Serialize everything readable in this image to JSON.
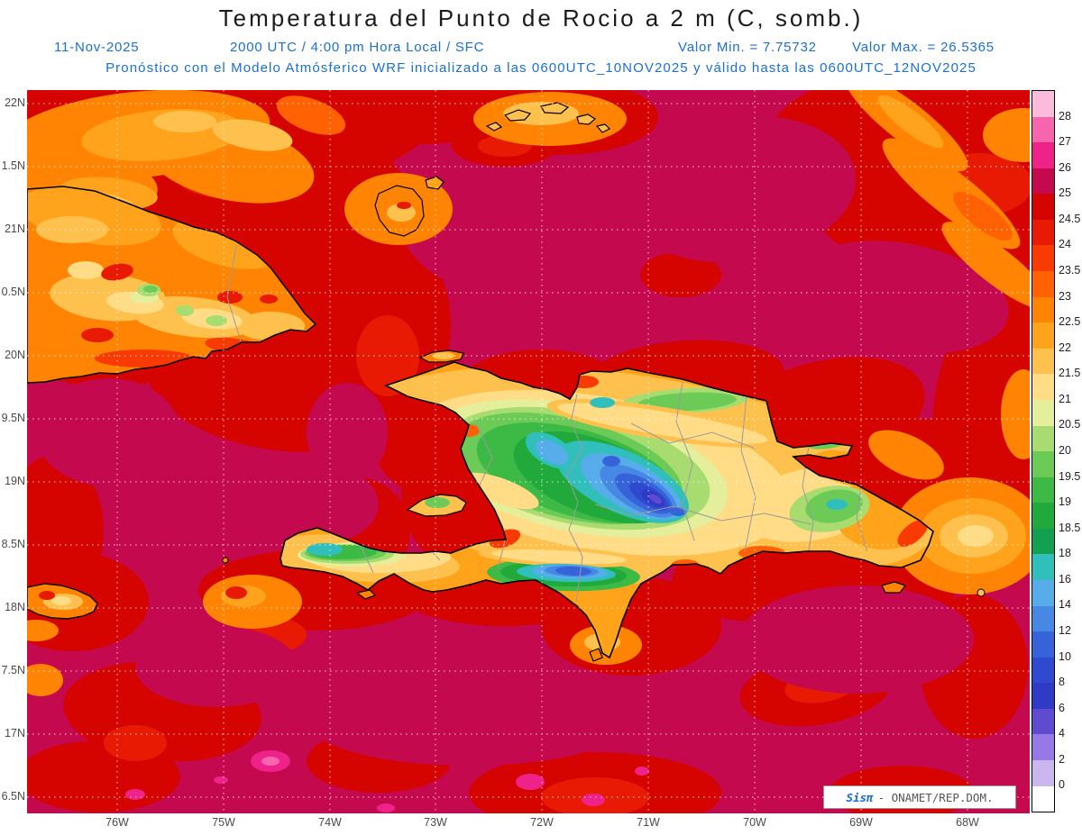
{
  "header": {
    "title": "Temperatura del Punto de Rocio a 2 m (C, somb.)",
    "date": "11-Nov-2025",
    "time": "2000 UTC / 4:00 pm Hora Local / SFC",
    "min_label": "Valor Min. = 7.75732",
    "max_label": "Valor Max. = 26.5365",
    "forecast_line": "Pronóstico con el Modelo Atmósferico WRF inicializado a las 0600UTC_10NOV2025 y válido hasta las  0600UTC_12NOV2025"
  },
  "axes": {
    "y_ticks": [
      "22N",
      "1.5N",
      "21N",
      "0.5N",
      "20N",
      "9.5N",
      "19N",
      "8.5N",
      "18N",
      "7.5N",
      "17N",
      "6.5N"
    ],
    "x_ticks": [
      "76W",
      "75W",
      "74W",
      "73W",
      "72W",
      "71W",
      "70W",
      "69W",
      "68W"
    ]
  },
  "colorbar": {
    "labels": [
      "28",
      "27",
      "26",
      "25",
      "24.5",
      "24",
      "23.5",
      "23",
      "22.5",
      "22",
      "21.5",
      "21",
      "20.5",
      "20",
      "19.5",
      "19",
      "18.5",
      "18",
      "16",
      "14",
      "12",
      "10",
      "8",
      "6",
      "4",
      "2",
      "0"
    ],
    "swatches": [
      "#FDBBDB",
      "#F964AE",
      "#EE2289",
      "#C5094F",
      "#D50400",
      "#E81A04",
      "#F93B03",
      "#FF6103",
      "#FF8403",
      "#FFA31C",
      "#FFC14E",
      "#FFDC85",
      "#E4EE9B",
      "#A8DB70",
      "#6BCB56",
      "#3CBA45",
      "#21A93C",
      "#13A050",
      "#30BFBB",
      "#57ADE9",
      "#4688E4",
      "#3763DA",
      "#2F4AD0",
      "#2F3AC6",
      "#5F4AD0",
      "#9678E6",
      "#CBB6F0",
      "#FFFFFF"
    ]
  },
  "watermark": {
    "brand": "Sisπ",
    "text": "- ONAMET/REP.DOM."
  },
  "colors": {
    "subtitle_blue": "#1a6fd4",
    "title_color": "#1b1b1b",
    "sea_crimson": "#C5094F"
  }
}
